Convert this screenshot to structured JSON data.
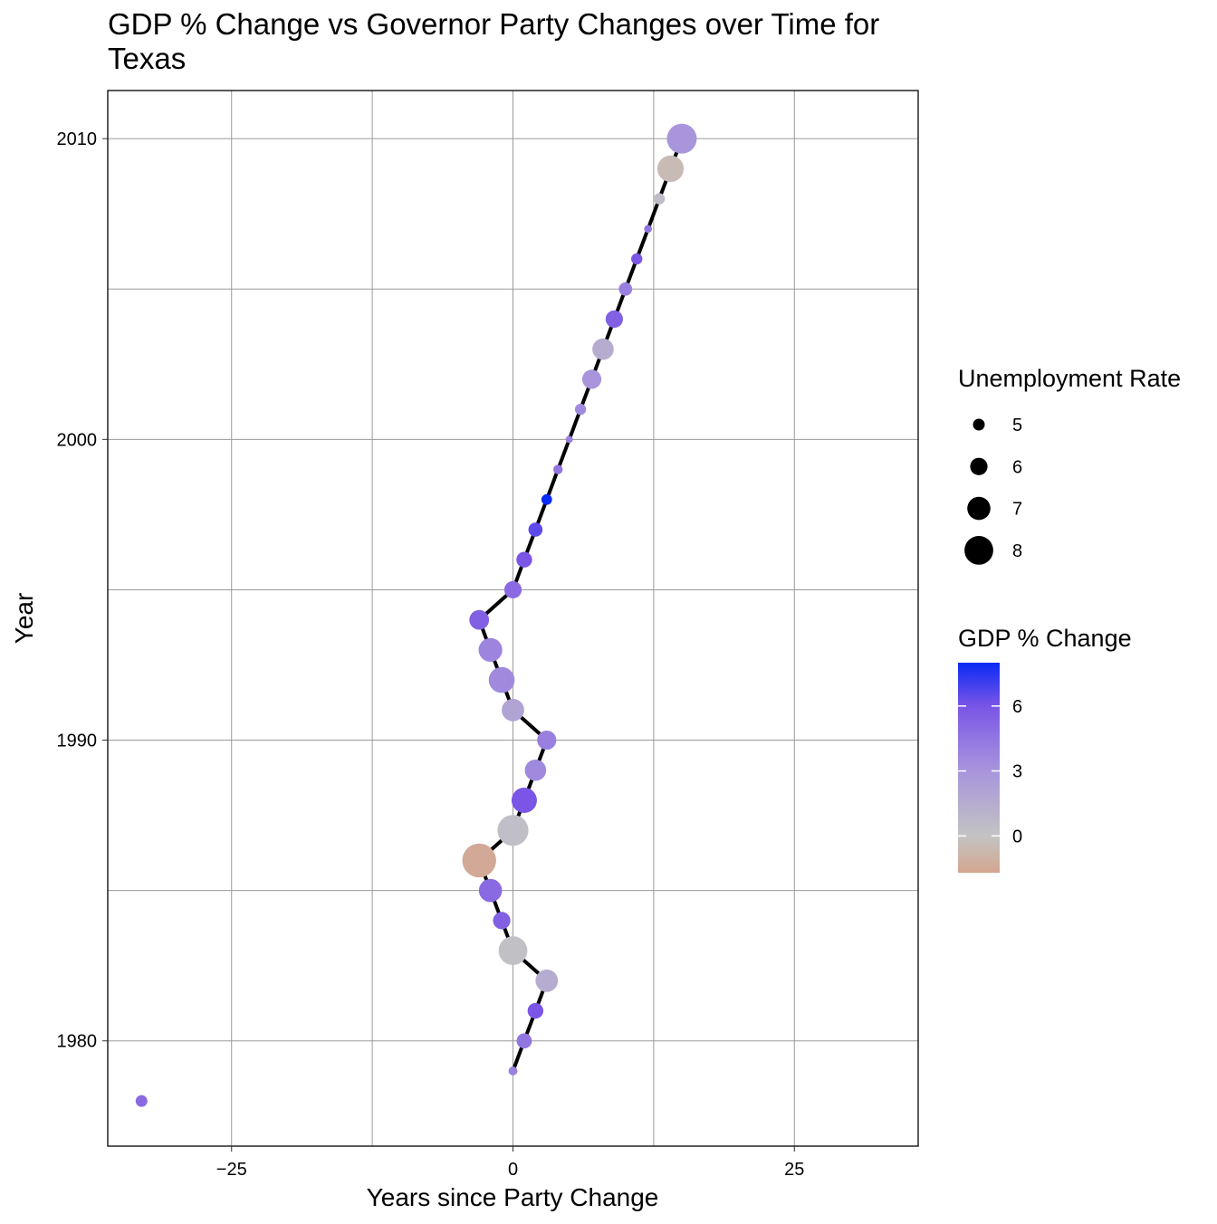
{
  "chart_data": {
    "type": "scatter",
    "title_line1": "GDP % Change vs Governor Party Changes over Time for",
    "title_line2": "Texas",
    "xlabel": "Years since Party Change",
    "ylabel": "Year",
    "xlim": [
      -36,
      36
    ],
    "ylim": [
      1976.5,
      2011.6
    ],
    "x_ticks": [
      -25,
      0,
      25
    ],
    "x_tick_labels": [
      "−25",
      "0",
      "25"
    ],
    "y_ticks": [
      1980,
      1990,
      2000,
      2010
    ],
    "y_tick_labels": [
      "1980",
      "1990",
      "2000",
      "2010"
    ],
    "grid": true,
    "connecting_line_color": "#000000",
    "points": [
      {
        "year": 1978,
        "x": -33,
        "unemployment": 5.0,
        "gdp_change": 5.0,
        "connected": false
      },
      {
        "year": 1979,
        "x": 0,
        "unemployment": 4.5,
        "gdp_change": 4.0,
        "connected": true
      },
      {
        "year": 1980,
        "x": 1,
        "unemployment": 5.6,
        "gdp_change": 4.5,
        "connected": true
      },
      {
        "year": 1981,
        "x": 2,
        "unemployment": 5.7,
        "gdp_change": 6.0,
        "connected": true
      },
      {
        "year": 1982,
        "x": 3,
        "unemployment": 6.9,
        "gdp_change": 1.5,
        "connected": true
      },
      {
        "year": 1983,
        "x": 0,
        "unemployment": 8.0,
        "gdp_change": 0.2,
        "connected": true
      },
      {
        "year": 1984,
        "x": -1,
        "unemployment": 6.0,
        "gdp_change": 5.5,
        "connected": true
      },
      {
        "year": 1985,
        "x": -2,
        "unemployment": 7.0,
        "gdp_change": 5.0,
        "connected": true
      },
      {
        "year": 1986,
        "x": -3,
        "unemployment": 8.9,
        "gdp_change": -1.5,
        "connected": true
      },
      {
        "year": 1987,
        "x": 0,
        "unemployment": 8.4,
        "gdp_change": 0.3,
        "connected": true
      },
      {
        "year": 1988,
        "x": 1,
        "unemployment": 7.4,
        "gdp_change": 6.0,
        "connected": true
      },
      {
        "year": 1989,
        "x": 2,
        "unemployment": 6.7,
        "gdp_change": 3.5,
        "connected": true
      },
      {
        "year": 1990,
        "x": 3,
        "unemployment": 6.3,
        "gdp_change": 4.0,
        "connected": true
      },
      {
        "year": 1991,
        "x": 0,
        "unemployment": 6.9,
        "gdp_change": 2.0,
        "connected": true
      },
      {
        "year": 1992,
        "x": -1,
        "unemployment": 7.5,
        "gdp_change": 3.5,
        "connected": true
      },
      {
        "year": 1993,
        "x": -2,
        "unemployment": 7.1,
        "gdp_change": 3.8,
        "connected": true
      },
      {
        "year": 1994,
        "x": -3,
        "unemployment": 6.4,
        "gdp_change": 5.5,
        "connected": true
      },
      {
        "year": 1995,
        "x": 0,
        "unemployment": 6.0,
        "gdp_change": 5.0,
        "connected": true
      },
      {
        "year": 1996,
        "x": 1,
        "unemployment": 5.7,
        "gdp_change": 6.0,
        "connected": true
      },
      {
        "year": 1997,
        "x": 2,
        "unemployment": 5.4,
        "gdp_change": 6.5,
        "connected": true
      },
      {
        "year": 1998,
        "x": 3,
        "unemployment": 4.8,
        "gdp_change": 8.0,
        "connected": true
      },
      {
        "year": 1999,
        "x": 4,
        "unemployment": 4.6,
        "gdp_change": 4.5,
        "connected": true
      },
      {
        "year": 2000,
        "x": 5,
        "unemployment": 4.2,
        "gdp_change": 4.0,
        "connected": true
      },
      {
        "year": 2001,
        "x": 6,
        "unemployment": 4.9,
        "gdp_change": 3.5,
        "connected": true
      },
      {
        "year": 2002,
        "x": 7,
        "unemployment": 6.3,
        "gdp_change": 3.0,
        "connected": true
      },
      {
        "year": 2003,
        "x": 8,
        "unemployment": 6.7,
        "gdp_change": 1.5,
        "connected": true
      },
      {
        "year": 2004,
        "x": 9,
        "unemployment": 6.0,
        "gdp_change": 5.5,
        "connected": true
      },
      {
        "year": 2005,
        "x": 10,
        "unemployment": 5.3,
        "gdp_change": 4.0,
        "connected": true
      },
      {
        "year": 2006,
        "x": 11,
        "unemployment": 4.9,
        "gdp_change": 6.0,
        "connected": true
      },
      {
        "year": 2007,
        "x": 12,
        "unemployment": 4.3,
        "gdp_change": 4.5,
        "connected": true
      },
      {
        "year": 2008,
        "x": 13,
        "unemployment": 4.9,
        "gdp_change": 0.5,
        "connected": true
      },
      {
        "year": 2009,
        "x": 14,
        "unemployment": 7.6,
        "gdp_change": -0.5,
        "connected": true
      },
      {
        "year": 2010,
        "x": 15,
        "unemployment": 8.2,
        "gdp_change": 3.0,
        "connected": true
      }
    ],
    "legend_size": {
      "title": "Unemployment Rate",
      "entries": [
        {
          "value": 5,
          "label": "5"
        },
        {
          "value": 6,
          "label": "6"
        },
        {
          "value": 7,
          "label": "7"
        },
        {
          "value": 8,
          "label": "8"
        }
      ],
      "key_color": "#000000"
    },
    "legend_color": {
      "title": "GDP % Change",
      "scale_min": -1.7,
      "scale_max": 8.0,
      "ticks": [
        {
          "value": 6,
          "label": "6"
        },
        {
          "value": 3,
          "label": "3"
        },
        {
          "value": 0,
          "label": "0"
        }
      ],
      "gradient_stops": [
        {
          "value": -1.7,
          "color": "#d4a690"
        },
        {
          "value": 0,
          "color": "#c3c3c3"
        },
        {
          "value": 3,
          "color": "#a895dc"
        },
        {
          "value": 6,
          "color": "#7a55e6"
        },
        {
          "value": 8,
          "color": "#0a2af5"
        }
      ]
    },
    "legend_position": "right"
  }
}
